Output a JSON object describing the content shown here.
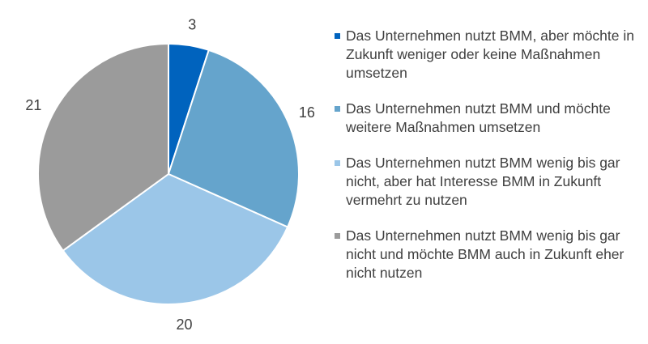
{
  "chart_data": {
    "type": "pie",
    "title": "",
    "slices": [
      {
        "label": "Das Unternehmen nutzt BMM, aber möchte in Zukunft weniger oder keine Maßnahmen umsetzen",
        "value": 3,
        "value_label": "3",
        "color": "#0063BE"
      },
      {
        "label": "Das Unternehmen nutzt BMM und möchte weitere Maßnahmen umsetzen",
        "value": 16,
        "value_label": "16",
        "color": "#65A4CC"
      },
      {
        "label": "Das Unternehmen nutzt BMM wenig bis gar nicht, aber hat Interesse BMM in Zukunft vermehrt zu nutzen",
        "value": 20,
        "value_label": "20",
        "color": "#9BC6E8"
      },
      {
        "label": "Das Unternehmen nutzt BMM wenig bis gar nicht und möchte BMM auch in Zukunft eher nicht nutzen",
        "value": 21,
        "value_label": "21",
        "color": "#9B9B9B"
      }
    ],
    "start_angle_deg": 0,
    "direction": "clockwise",
    "legend_position": "right"
  }
}
